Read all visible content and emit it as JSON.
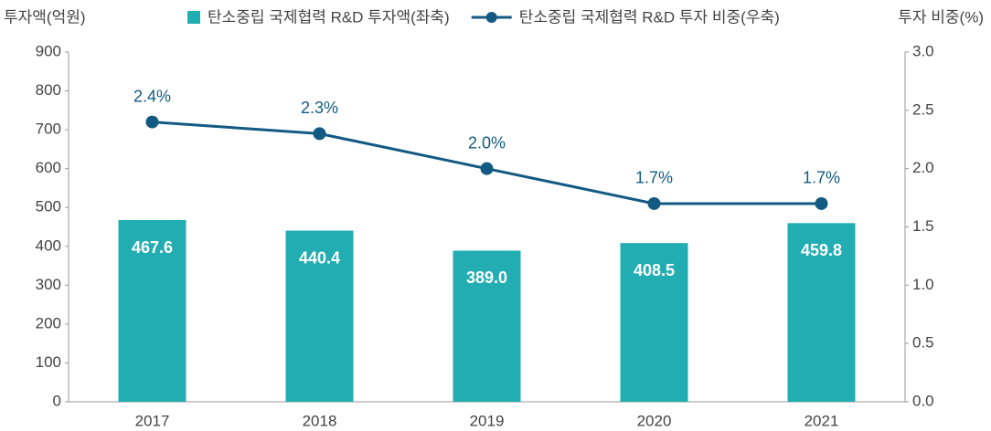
{
  "chart_data": {
    "type": "bar+line",
    "y_label": "투자액(억원)",
    "y2_label": "투자 비중(%)",
    "categories": [
      "2017",
      "2018",
      "2019",
      "2020",
      "2021"
    ],
    "series": [
      {
        "name": "탄소중립 국제협력 R&D 투자액(좌축)",
        "type": "bar",
        "color": "#22adb3",
        "values": [
          467.6,
          440.4,
          389.0,
          408.5,
          459.8
        ],
        "value_labels": [
          "467.6",
          "440.4",
          "389.0",
          "408.5",
          "459.8"
        ]
      },
      {
        "name": "탄소중립 국제협력 R&D 투자 비중(우축)",
        "type": "line",
        "axis": "y2",
        "color": "#135a82",
        "values": [
          2.4,
          2.3,
          2.0,
          1.7,
          1.7
        ],
        "value_labels": [
          "2.4%",
          "2.3%",
          "2.0%",
          "1.7%",
          "1.7%"
        ]
      }
    ],
    "ylim": [
      0,
      900
    ],
    "yticks": [
      0,
      100,
      200,
      300,
      400,
      500,
      600,
      700,
      800,
      900
    ],
    "y2lim": [
      0,
      3
    ],
    "y2ticks": [
      {
        "value": 0,
        "label": "0.0"
      },
      0.5,
      {
        "value": 1,
        "label": "1.0"
      },
      1.5,
      {
        "value": 2,
        "label": "2.0"
      },
      2.5,
      {
        "value": 3,
        "label": "3.0"
      }
    ],
    "grid": false,
    "legend": "top"
  }
}
